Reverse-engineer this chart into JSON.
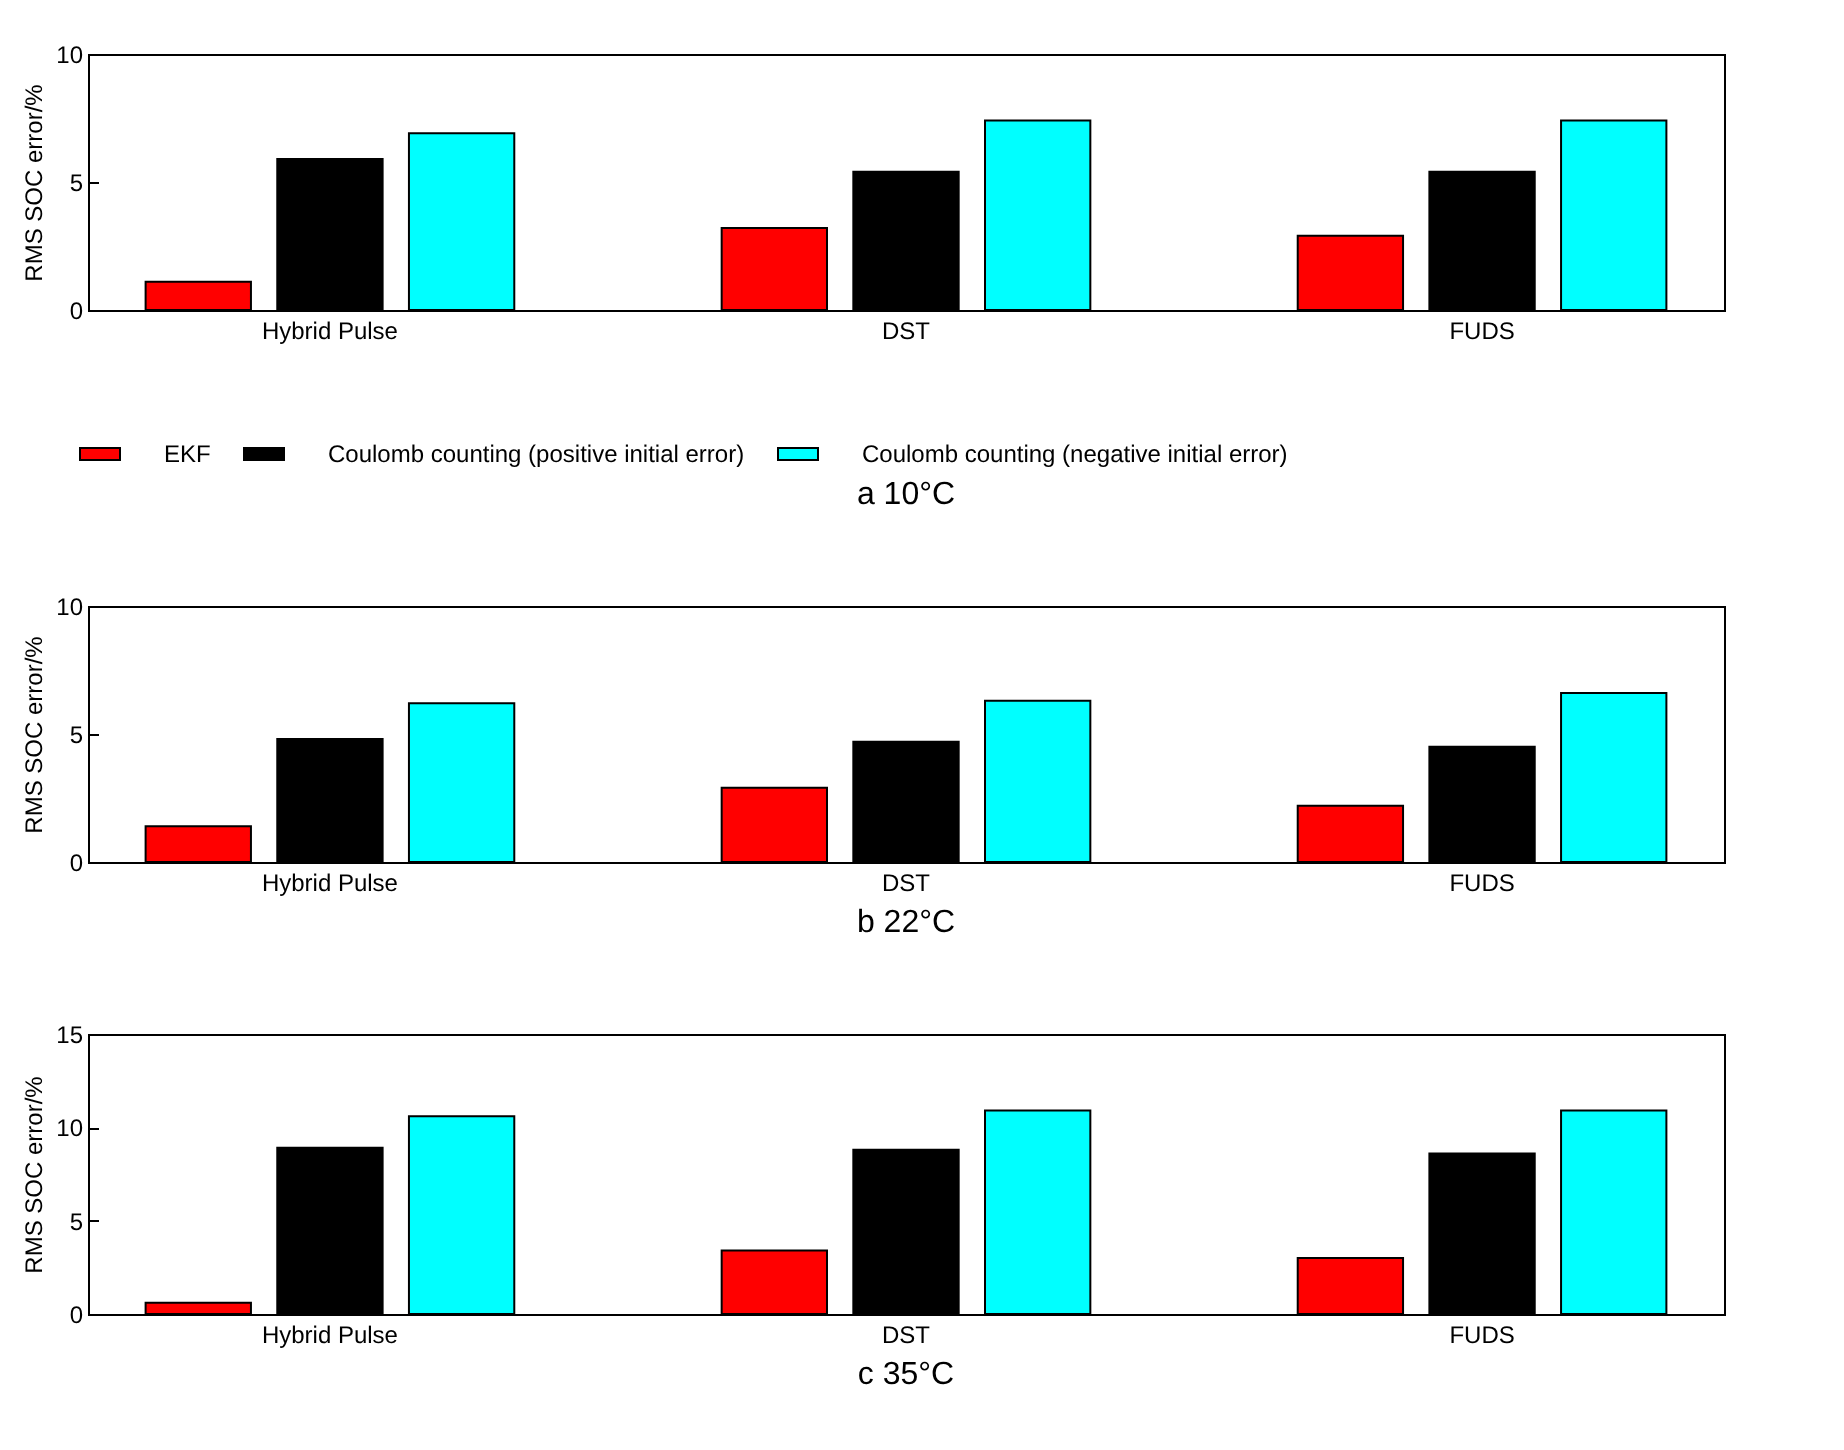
{
  "chart_data": [
    {
      "type": "bar",
      "title": "a 10°C",
      "ylabel": "RMS SOC error/%",
      "categories": [
        "Hybrid Pulse",
        "DST",
        "FUDS"
      ],
      "ylim": [
        0,
        10
      ],
      "yticks": [
        0,
        5,
        10
      ],
      "grid": false,
      "legend": "bottom",
      "series": [
        {
          "name": "EKF",
          "color": "#ff0000",
          "values": [
            1.1,
            3.2,
            2.9
          ]
        },
        {
          "name": "Coulomb counting (positive initial error)",
          "color": "#000000",
          "values": [
            5.9,
            5.4,
            5.4
          ]
        },
        {
          "name": "Coulomb counting (negative initial error)",
          "color": "#00ffff",
          "values": [
            6.9,
            7.4,
            7.4
          ]
        }
      ]
    },
    {
      "type": "bar",
      "title": "b 22°C",
      "ylabel": "RMS SOC error/%",
      "categories": [
        "Hybrid Pulse",
        "DST",
        "FUDS"
      ],
      "ylim": [
        0,
        10
      ],
      "yticks": [
        0,
        5,
        10
      ],
      "grid": false,
      "series": [
        {
          "color": "#ff0000",
          "values": [
            1.4,
            2.9,
            2.2
          ]
        },
        {
          "color": "#000000",
          "values": [
            4.8,
            4.7,
            4.5
          ]
        },
        {
          "color": "#00ffff",
          "values": [
            6.2,
            6.3,
            6.6
          ]
        }
      ]
    },
    {
      "type": "bar",
      "title": "c 35°C",
      "ylabel": "RMS SOC error/%",
      "categories": [
        "Hybrid Pulse",
        "DST",
        "FUDS"
      ],
      "ylim": [
        0,
        15
      ],
      "yticks": [
        0,
        5,
        10,
        15
      ],
      "grid": false,
      "series": [
        {
          "color": "#ff0000",
          "values": [
            0.6,
            3.4,
            3.0
          ]
        },
        {
          "color": "#000000",
          "values": [
            8.9,
            8.8,
            8.6
          ]
        },
        {
          "color": "#00ffff",
          "values": [
            10.6,
            10.9,
            10.9
          ]
        }
      ]
    }
  ]
}
